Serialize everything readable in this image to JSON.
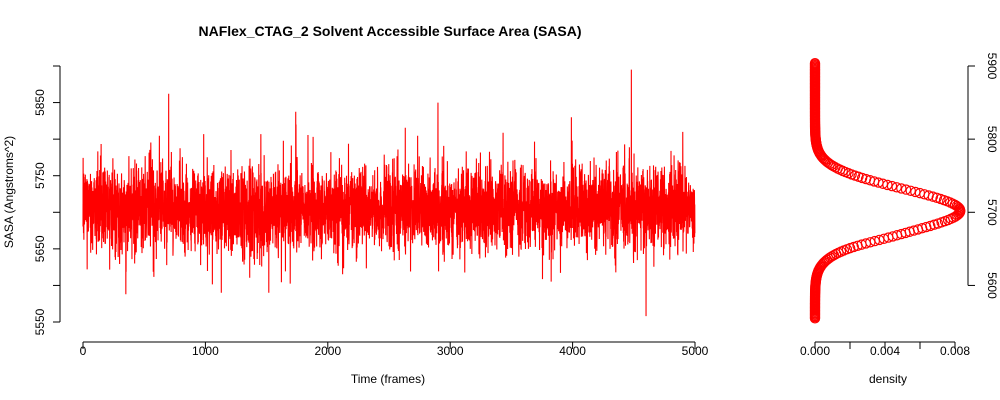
{
  "chart_data": [
    {
      "type": "line",
      "title": "NAFlex_CTAG_2 Solvent Accessible Surface Area (SASA)",
      "xlabel": "Time (frames)",
      "ylabel": "SASA (Angstroms^2)",
      "xlim": [
        0,
        5000
      ],
      "ylim": [
        5550,
        5900
      ],
      "x_ticks": [
        0,
        1000,
        2000,
        3000,
        4000,
        5000
      ],
      "y_ticks": [
        5550,
        5650,
        5750,
        5850
      ],
      "y_ticks_labeled": [
        5550,
        5650,
        5750,
        5850
      ],
      "grid": false,
      "color": "#ff0000",
      "series": [
        {
          "n_points": 5000,
          "mean": 5705,
          "sd": 30,
          "min": 5558,
          "max": 5895,
          "peaks": [
            {
              "x": 700,
              "y": 5862
            },
            {
              "x": 1740,
              "y": 5820
            },
            {
              "x": 2900,
              "y": 5850
            },
            {
              "x": 3990,
              "y": 5830
            },
            {
              "x": 4480,
              "y": 5895
            },
            {
              "x": 4900,
              "y": 5810
            }
          ],
          "troughs": [
            {
              "x": 350,
              "y": 5588
            },
            {
              "x": 1130,
              "y": 5590
            },
            {
              "x": 4600,
              "y": 5558
            }
          ]
        }
      ]
    },
    {
      "type": "scatter",
      "xlabel": "density",
      "ylabel": "",
      "xlim": [
        0,
        0.008
      ],
      "ylim": [
        5550,
        5900
      ],
      "x_ticks": [
        "0.000",
        "0.004",
        "0.008"
      ],
      "x_ticks_minor": [
        0.002,
        0.006
      ],
      "y_ticks": [
        5600,
        5700,
        5800,
        5900
      ],
      "y_axis_side": "right",
      "color": "#ff0000",
      "marker": "open-circle",
      "series": [
        {
          "distribution": "gaussian",
          "peak_x": 0.0083,
          "peak_y": 5702,
          "y_range": [
            5555,
            5905
          ]
        }
      ]
    }
  ]
}
